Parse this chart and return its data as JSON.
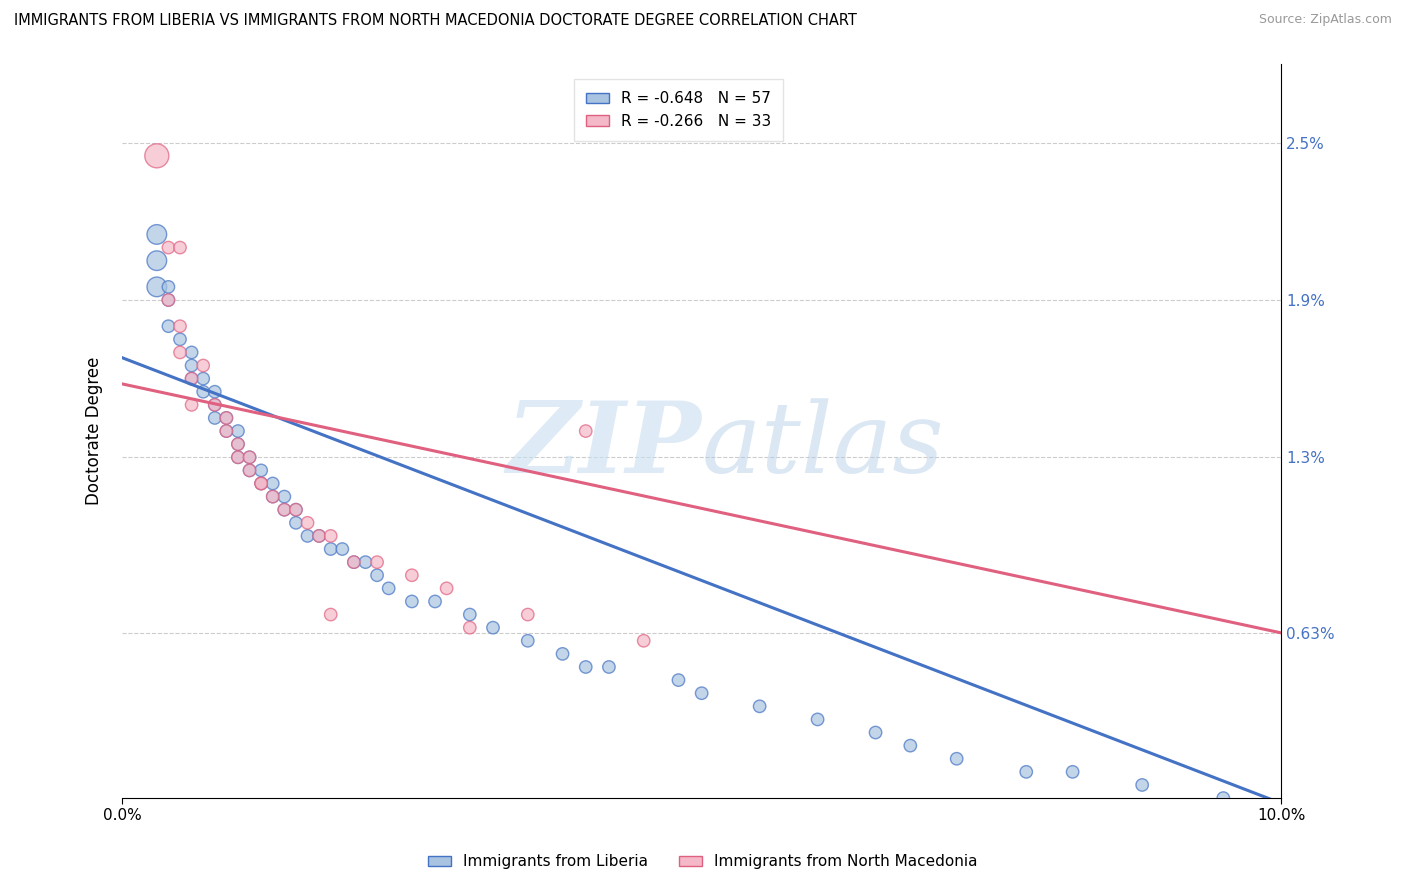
{
  "title": "IMMIGRANTS FROM LIBERIA VS IMMIGRANTS FROM NORTH MACEDONIA DOCTORATE DEGREE CORRELATION CHART",
  "source": "Source: ZipAtlas.com",
  "ylabel": "Doctorate Degree",
  "xlim": [
    0.0,
    0.1
  ],
  "ylim": [
    0.0,
    0.028
  ],
  "xtick_labels": [
    "0.0%",
    "10.0%"
  ],
  "xtick_positions": [
    0.0,
    0.1
  ],
  "ytick_labels": [
    "0.63%",
    "1.3%",
    "1.9%",
    "2.5%"
  ],
  "ytick_positions": [
    0.0063,
    0.013,
    0.019,
    0.025
  ],
  "legend_r1": "R = -0.648",
  "legend_n1": "N = 57",
  "legend_r2": "R = -0.266",
  "legend_n2": "N = 33",
  "color_blue": "#a8c4e0",
  "color_pink": "#f4b8c8",
  "line_color_blue": "#4472c4",
  "line_color_pink": "#e06080",
  "watermark_color": "#cde4f5",
  "blue_line_x": [
    0.0,
    0.1
  ],
  "blue_line_y": [
    0.0168,
    -0.0002
  ],
  "pink_line_x": [
    0.0,
    0.1
  ],
  "pink_line_y": [
    0.0158,
    0.0063
  ],
  "scatter_blue": [
    [
      0.003,
      0.0215
    ],
    [
      0.003,
      0.0205
    ],
    [
      0.003,
      0.0195
    ],
    [
      0.004,
      0.0195
    ],
    [
      0.004,
      0.019
    ],
    [
      0.004,
      0.018
    ],
    [
      0.005,
      0.0175
    ],
    [
      0.006,
      0.017
    ],
    [
      0.006,
      0.0165
    ],
    [
      0.006,
      0.016
    ],
    [
      0.007,
      0.016
    ],
    [
      0.007,
      0.0155
    ],
    [
      0.008,
      0.0155
    ],
    [
      0.008,
      0.015
    ],
    [
      0.008,
      0.0145
    ],
    [
      0.009,
      0.0145
    ],
    [
      0.009,
      0.014
    ],
    [
      0.01,
      0.014
    ],
    [
      0.01,
      0.0135
    ],
    [
      0.01,
      0.013
    ],
    [
      0.011,
      0.013
    ],
    [
      0.011,
      0.0125
    ],
    [
      0.012,
      0.0125
    ],
    [
      0.012,
      0.012
    ],
    [
      0.013,
      0.012
    ],
    [
      0.013,
      0.0115
    ],
    [
      0.014,
      0.0115
    ],
    [
      0.014,
      0.011
    ],
    [
      0.015,
      0.011
    ],
    [
      0.015,
      0.0105
    ],
    [
      0.016,
      0.01
    ],
    [
      0.017,
      0.01
    ],
    [
      0.018,
      0.0095
    ],
    [
      0.019,
      0.0095
    ],
    [
      0.02,
      0.009
    ],
    [
      0.021,
      0.009
    ],
    [
      0.022,
      0.0085
    ],
    [
      0.023,
      0.008
    ],
    [
      0.025,
      0.0075
    ],
    [
      0.027,
      0.0075
    ],
    [
      0.03,
      0.007
    ],
    [
      0.032,
      0.0065
    ],
    [
      0.035,
      0.006
    ],
    [
      0.038,
      0.0055
    ],
    [
      0.04,
      0.005
    ],
    [
      0.042,
      0.005
    ],
    [
      0.048,
      0.0045
    ],
    [
      0.05,
      0.004
    ],
    [
      0.055,
      0.0035
    ],
    [
      0.06,
      0.003
    ],
    [
      0.065,
      0.0025
    ],
    [
      0.068,
      0.002
    ],
    [
      0.072,
      0.0015
    ],
    [
      0.078,
      0.001
    ],
    [
      0.082,
      0.001
    ],
    [
      0.088,
      0.0005
    ],
    [
      0.095,
      0.0
    ]
  ],
  "scatter_pink": [
    [
      0.003,
      0.0245
    ],
    [
      0.004,
      0.021
    ],
    [
      0.005,
      0.021
    ],
    [
      0.004,
      0.019
    ],
    [
      0.005,
      0.018
    ],
    [
      0.005,
      0.017
    ],
    [
      0.007,
      0.0165
    ],
    [
      0.006,
      0.016
    ],
    [
      0.006,
      0.015
    ],
    [
      0.008,
      0.015
    ],
    [
      0.009,
      0.0145
    ],
    [
      0.009,
      0.014
    ],
    [
      0.01,
      0.0135
    ],
    [
      0.01,
      0.013
    ],
    [
      0.011,
      0.013
    ],
    [
      0.011,
      0.0125
    ],
    [
      0.012,
      0.012
    ],
    [
      0.012,
      0.012
    ],
    [
      0.013,
      0.0115
    ],
    [
      0.014,
      0.011
    ],
    [
      0.015,
      0.011
    ],
    [
      0.016,
      0.0105
    ],
    [
      0.017,
      0.01
    ],
    [
      0.018,
      0.01
    ],
    [
      0.02,
      0.009
    ],
    [
      0.022,
      0.009
    ],
    [
      0.025,
      0.0085
    ],
    [
      0.028,
      0.008
    ],
    [
      0.018,
      0.007
    ],
    [
      0.035,
      0.007
    ],
    [
      0.04,
      0.014
    ],
    [
      0.03,
      0.0065
    ],
    [
      0.045,
      0.006
    ]
  ]
}
